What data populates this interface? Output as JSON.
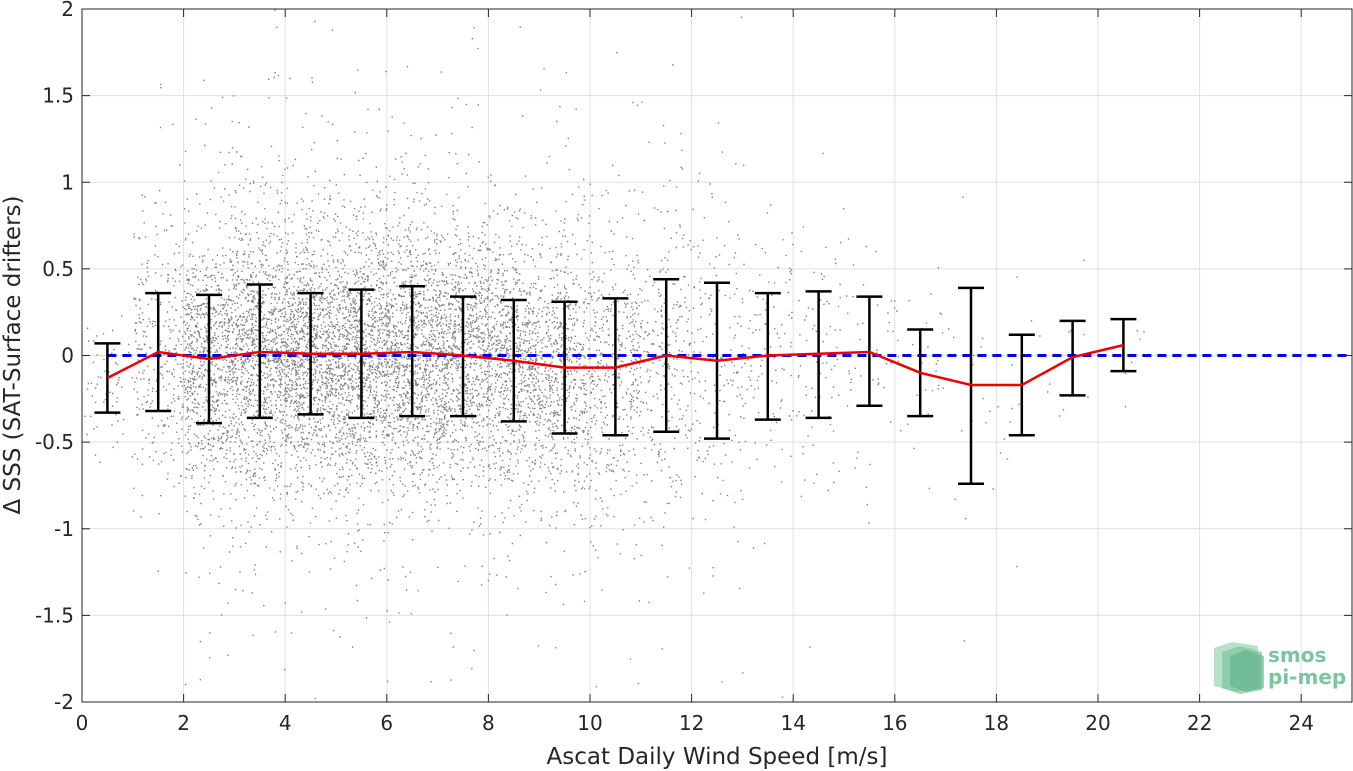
{
  "chart_data": {
    "type": "scatter",
    "title": "",
    "xlabel": "Ascat Daily Wind Speed [m/s]",
    "ylabel": "Δ SSS (SAT-Surface drifters)",
    "xlim": [
      0,
      25
    ],
    "ylim": [
      -2,
      2
    ],
    "x_ticks": [
      0,
      2,
      4,
      6,
      8,
      10,
      12,
      14,
      16,
      18,
      20,
      22,
      24
    ],
    "y_ticks": [
      -2,
      -1.5,
      -1,
      -0.5,
      0,
      0.5,
      1,
      1.5,
      2
    ],
    "grid": true,
    "reference_line": {
      "y": 0,
      "color": "#0000ee",
      "style": "dashed"
    },
    "mean_line": {
      "color": "#ee0000",
      "x": [
        0.5,
        1.5,
        2.5,
        3.5,
        4.5,
        5.5,
        6.5,
        7.5,
        8.5,
        9.5,
        10.5,
        11.5,
        12.5,
        13.5,
        14.5,
        15.5,
        16.5,
        17.5,
        18.5,
        19.5,
        20.5
      ],
      "y": [
        -0.13,
        0.02,
        -0.02,
        0.02,
        0.01,
        0.01,
        0.02,
        0.0,
        -0.03,
        -0.07,
        -0.07,
        0.0,
        -0.03,
        0.0,
        0.01,
        0.02,
        -0.1,
        -0.17,
        -0.17,
        -0.01,
        0.06
      ]
    },
    "error_bars": {
      "color": "#000000",
      "x": [
        0.5,
        1.5,
        2.5,
        3.5,
        4.5,
        5.5,
        6.5,
        7.5,
        8.5,
        9.5,
        10.5,
        11.5,
        12.5,
        13.5,
        14.5,
        15.5,
        16.5,
        17.5,
        18.5,
        19.5,
        20.5
      ],
      "upper": [
        0.07,
        0.36,
        0.35,
        0.41,
        0.36,
        0.38,
        0.4,
        0.34,
        0.32,
        0.31,
        0.33,
        0.44,
        0.42,
        0.36,
        0.37,
        0.34,
        0.15,
        0.39,
        0.12,
        0.2,
        0.21
      ],
      "lower": [
        -0.33,
        -0.32,
        -0.39,
        -0.36,
        -0.34,
        -0.36,
        -0.35,
        -0.35,
        -0.38,
        -0.45,
        -0.46,
        -0.44,
        -0.48,
        -0.37,
        -0.36,
        -0.29,
        -0.35,
        -0.74,
        -0.46,
        -0.23,
        -0.09
      ]
    },
    "scatter_color": "#808080",
    "scatter_envelope": {
      "x": [
        0.5,
        1.5,
        2.5,
        3.5,
        4.5,
        5.5,
        6.5,
        7.5,
        8.5,
        9.5,
        10.5,
        11.5,
        12.5,
        13.5,
        14.5,
        15.5,
        16.5,
        17.5,
        18.5,
        19.5,
        20.5
      ],
      "sd": [
        0.2,
        0.34,
        0.37,
        0.39,
        0.35,
        0.37,
        0.38,
        0.35,
        0.35,
        0.38,
        0.4,
        0.44,
        0.45,
        0.36,
        0.37,
        0.32,
        0.25,
        0.5,
        0.29,
        0.22,
        0.15
      ],
      "density": [
        60,
        300,
        900,
        1100,
        1200,
        1200,
        1100,
        1000,
        850,
        650,
        450,
        280,
        180,
        110,
        80,
        50,
        30,
        18,
        14,
        10,
        6
      ]
    }
  },
  "logo": {
    "line1": "smos",
    "line2": "pi-mep",
    "color": "#7cc4a0"
  }
}
